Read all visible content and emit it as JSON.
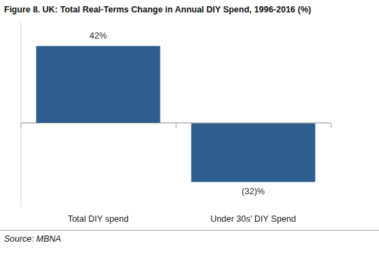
{
  "chart_data": {
    "type": "bar",
    "title": "Figure 8. UK: Total Real-Terms Change in Annual DIY Spend, 1996-2016 (%)",
    "categories": [
      "Total DIY spend",
      "Under 30s' DIY Spend"
    ],
    "values": [
      42,
      -32
    ],
    "value_labels": [
      "42%",
      "(32)%"
    ],
    "data_labels": true,
    "color": "#2e5e8e",
    "ylim": [
      -45,
      55
    ],
    "yticks": [
      0
    ],
    "grid": true,
    "tick_labels": "x",
    "source": "Source: MBNA"
  }
}
